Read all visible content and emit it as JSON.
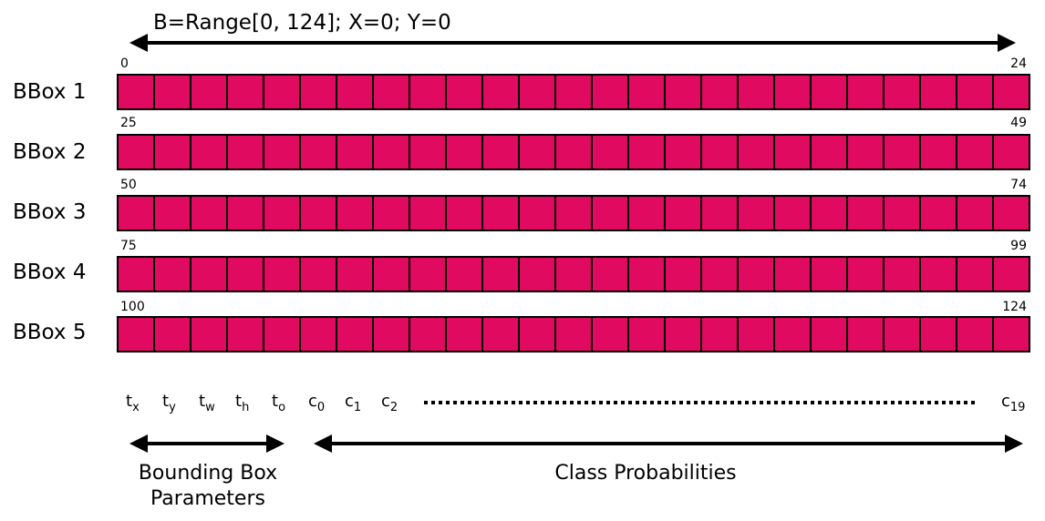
{
  "title": "B=Range[0, 124]; X=0; Y=0",
  "cells_per_row": 25,
  "cell_color": "#e00a60",
  "rows": [
    {
      "label": "BBox 1",
      "start": "0",
      "end": "24"
    },
    {
      "label": "BBox 2",
      "start": "25",
      "end": "49"
    },
    {
      "label": "BBox 3",
      "start": "50",
      "end": "74"
    },
    {
      "label": "BBox 4",
      "start": "75",
      "end": "99"
    },
    {
      "label": "BBox 5",
      "start": "100",
      "end": "124"
    }
  ],
  "params": [
    {
      "base": "t",
      "sub": "x"
    },
    {
      "base": "t",
      "sub": "y"
    },
    {
      "base": "t",
      "sub": "w"
    },
    {
      "base": "t",
      "sub": "h"
    },
    {
      "base": "t",
      "sub": "o"
    },
    {
      "base": "c",
      "sub": "0"
    },
    {
      "base": "c",
      "sub": "1"
    },
    {
      "base": "c",
      "sub": "2"
    },
    {
      "base": "c",
      "sub": "19"
    }
  ],
  "captions": {
    "bbox_params": [
      "Bounding Box",
      "Parameters"
    ],
    "class_probs": "Class Probabilities"
  }
}
